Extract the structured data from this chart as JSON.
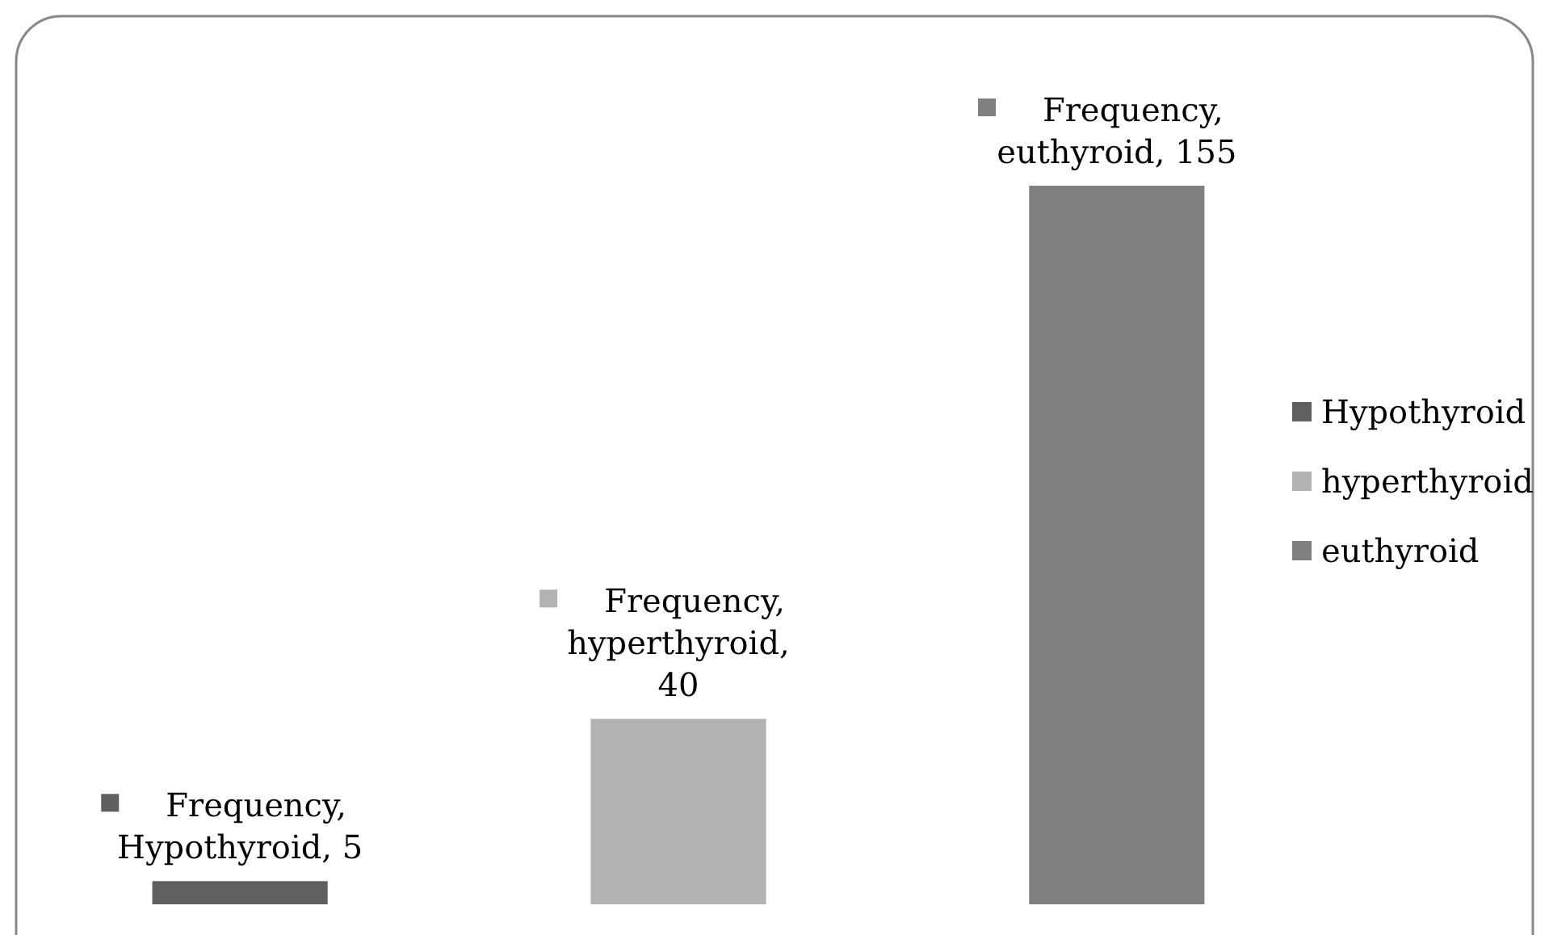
{
  "chart_data": {
    "type": "bar",
    "stacked": true,
    "categories": [
      null,
      null,
      null
    ],
    "series": [
      {
        "name": "Hypothyroid",
        "color": "#606060",
        "values": [
          5,
          0,
          0
        ],
        "value_labels": [
          "Frequency, Hypothyroid, 5",
          null,
          null
        ]
      },
      {
        "name": "hyperthyroid",
        "color": "#b2b2b2",
        "values": [
          0,
          40,
          0
        ],
        "value_labels": [
          null,
          "Frequency, hyperthyroid, 40",
          null
        ]
      },
      {
        "name": "euthyroid",
        "color": "#808080",
        "values": [
          0,
          0,
          155
        ],
        "value_labels": [
          null,
          null,
          "Frequency, euthyroid, 155"
        ]
      }
    ],
    "legend": "right"
  }
}
